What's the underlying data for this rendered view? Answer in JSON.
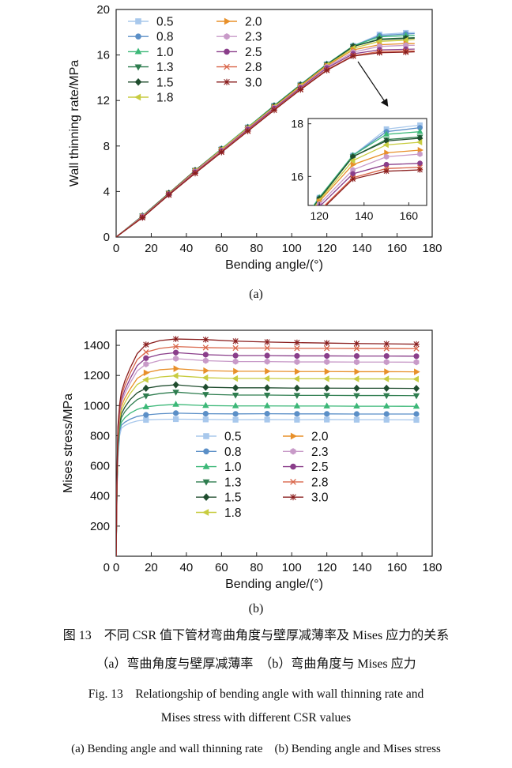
{
  "series_styles": [
    {
      "name": "0.5",
      "color": "#a8c8ec",
      "marker": "square"
    },
    {
      "name": "0.8",
      "color": "#5b8fc7",
      "marker": "circle"
    },
    {
      "name": "1.0",
      "color": "#3cb878",
      "marker": "triangle-up"
    },
    {
      "name": "1.3",
      "color": "#2e7d4f",
      "marker": "triangle-down"
    },
    {
      "name": "1.5",
      "color": "#1f4d2e",
      "marker": "diamond"
    },
    {
      "name": "1.8",
      "color": "#c8cc40",
      "marker": "triangle-left"
    },
    {
      "name": "2.0",
      "color": "#e8902a",
      "marker": "triangle-right"
    },
    {
      "name": "2.3",
      "color": "#c89ac8",
      "marker": "hexagon"
    },
    {
      "name": "2.5",
      "color": "#8a3e8a",
      "marker": "circle"
    },
    {
      "name": "2.8",
      "color": "#d9664a",
      "marker": "x"
    },
    {
      "name": "3.0",
      "color": "#8a1e1e",
      "marker": "star"
    }
  ],
  "chart_data": [
    {
      "type": "line",
      "panel": "(a)",
      "xlabel": "Bending angle/(°)",
      "ylabel": "Wall thinning rate/MPa",
      "xlim": [
        0,
        180
      ],
      "ylim": [
        0,
        20
      ],
      "xticks": [
        "0",
        "20",
        "40",
        "60",
        "80",
        "100",
        "120",
        "140",
        "160",
        "180"
      ],
      "yticks": [
        "0",
        "4",
        "8",
        "12",
        "16",
        "20"
      ],
      "legend": "top-left, two columns",
      "grid": false,
      "x": [
        0,
        15,
        30,
        45,
        60,
        75,
        90,
        105,
        120,
        135,
        150,
        165,
        170
      ],
      "series": [
        {
          "name": "0.5",
          "values": [
            0,
            1.85,
            3.85,
            5.85,
            7.75,
            9.65,
            11.55,
            13.4,
            15.2,
            16.8,
            17.8,
            17.95,
            17.98
          ]
        },
        {
          "name": "0.8",
          "values": [
            0,
            1.85,
            3.85,
            5.85,
            7.75,
            9.65,
            11.55,
            13.4,
            15.2,
            16.8,
            17.7,
            17.85,
            17.88
          ]
        },
        {
          "name": "1.0",
          "values": [
            0,
            1.85,
            3.85,
            5.85,
            7.75,
            9.65,
            11.55,
            13.4,
            15.2,
            16.8,
            17.6,
            17.7,
            17.72
          ]
        },
        {
          "name": "1.3",
          "values": [
            0,
            1.85,
            3.85,
            5.85,
            7.7,
            9.6,
            11.5,
            13.35,
            15.15,
            16.75,
            17.4,
            17.5,
            17.52
          ]
        },
        {
          "name": "1.5",
          "values": [
            0,
            1.85,
            3.85,
            5.85,
            7.7,
            9.6,
            11.5,
            13.35,
            15.15,
            16.75,
            17.35,
            17.45,
            17.48
          ]
        },
        {
          "name": "1.8",
          "values": [
            0,
            1.8,
            3.8,
            5.8,
            7.7,
            9.6,
            11.45,
            13.3,
            15.1,
            16.6,
            17.2,
            17.3,
            17.35
          ]
        },
        {
          "name": "2.0",
          "values": [
            0,
            1.8,
            3.8,
            5.8,
            7.65,
            9.55,
            11.4,
            13.25,
            15.05,
            16.45,
            16.9,
            17.0,
            17.0
          ]
        },
        {
          "name": "2.3",
          "values": [
            0,
            1.8,
            3.75,
            5.75,
            7.6,
            9.5,
            11.35,
            13.15,
            14.95,
            16.25,
            16.75,
            16.85,
            16.85
          ]
        },
        {
          "name": "2.5",
          "values": [
            0,
            1.75,
            3.75,
            5.7,
            7.55,
            9.45,
            11.3,
            13.1,
            14.85,
            16.1,
            16.45,
            16.5,
            16.52
          ]
        },
        {
          "name": "2.8",
          "values": [
            0,
            1.75,
            3.7,
            5.65,
            7.5,
            9.35,
            11.2,
            13.0,
            14.7,
            15.95,
            16.3,
            16.35,
            16.35
          ]
        },
        {
          "name": "3.0",
          "values": [
            0,
            1.7,
            3.7,
            5.6,
            7.45,
            9.3,
            11.15,
            12.95,
            14.65,
            15.9,
            16.2,
            16.25,
            16.28
          ]
        }
      ],
      "inset": {
        "xlim": [
          115,
          168
        ],
        "ylim": [
          14.9,
          18.2
        ],
        "xticks": [
          "120",
          "140",
          "160"
        ],
        "yticks": [
          "16",
          "18"
        ]
      }
    },
    {
      "type": "line",
      "panel": "(b)",
      "xlabel": "Bending angle/(°)",
      "ylabel": "Mises stress/MPa",
      "xlim": [
        0,
        180
      ],
      "ylim": [
        0,
        1500
      ],
      "xticks": [
        "0",
        "20",
        "40",
        "60",
        "80",
        "100",
        "120",
        "140",
        "160",
        "180"
      ],
      "yticks": [
        "200",
        "400",
        "600",
        "800",
        "1000",
        "1200",
        "1400"
      ],
      "legend": "center, two columns",
      "grid": false,
      "x": [
        0,
        0.5,
        1,
        2,
        3,
        5,
        8,
        12,
        17,
        25,
        34,
        51,
        68,
        86,
        103,
        120,
        137,
        154,
        171
      ],
      "series": [
        {
          "name": "0.5",
          "values": [
            0,
            420,
            650,
            800,
            850,
            868,
            885,
            898,
            905,
            908,
            910,
            908,
            906,
            907,
            906,
            907,
            906,
            906,
            905
          ]
        },
        {
          "name": "0.8",
          "values": [
            0,
            440,
            680,
            830,
            870,
            890,
            910,
            928,
            938,
            946,
            950,
            946,
            945,
            946,
            945,
            945,
            944,
            944,
            944
          ]
        },
        {
          "name": "1.0",
          "values": [
            0,
            450,
            700,
            850,
            890,
            920,
            950,
            975,
            992,
            1002,
            1008,
            1000,
            998,
            998,
            997,
            997,
            996,
            996,
            995
          ]
        },
        {
          "name": "1.3",
          "values": [
            0,
            460,
            720,
            870,
            920,
            960,
            1000,
            1040,
            1065,
            1080,
            1090,
            1075,
            1070,
            1070,
            1068,
            1068,
            1067,
            1067,
            1066
          ]
        },
        {
          "name": "1.5",
          "values": [
            0,
            470,
            740,
            890,
            945,
            990,
            1040,
            1085,
            1115,
            1130,
            1138,
            1122,
            1118,
            1118,
            1116,
            1116,
            1115,
            1115,
            1114
          ]
        },
        {
          "name": "1.8",
          "values": [
            0,
            480,
            760,
            910,
            970,
            1020,
            1080,
            1140,
            1172,
            1190,
            1198,
            1185,
            1180,
            1180,
            1178,
            1178,
            1177,
            1177,
            1176
          ]
        },
        {
          "name": "2.0",
          "values": [
            0,
            490,
            780,
            930,
            995,
            1050,
            1110,
            1180,
            1218,
            1238,
            1245,
            1232,
            1228,
            1228,
            1226,
            1226,
            1225,
            1225,
            1224
          ]
        },
        {
          "name": "2.3",
          "values": [
            0,
            500,
            800,
            950,
            1020,
            1080,
            1150,
            1230,
            1275,
            1300,
            1312,
            1298,
            1292,
            1292,
            1290,
            1290,
            1289,
            1289,
            1288
          ]
        },
        {
          "name": "2.5",
          "values": [
            0,
            510,
            820,
            970,
            1040,
            1105,
            1180,
            1265,
            1315,
            1340,
            1352,
            1338,
            1332,
            1332,
            1330,
            1330,
            1329,
            1329,
            1328
          ]
        },
        {
          "name": "2.8",
          "values": [
            0,
            520,
            840,
            990,
            1065,
            1135,
            1215,
            1305,
            1355,
            1380,
            1392,
            1385,
            1382,
            1382,
            1380,
            1380,
            1379,
            1379,
            1378
          ]
        },
        {
          "name": "3.0",
          "values": [
            0,
            530,
            860,
            1010,
            1090,
            1165,
            1250,
            1345,
            1405,
            1432,
            1442,
            1438,
            1428,
            1422,
            1418,
            1415,
            1412,
            1410,
            1408
          ]
        }
      ]
    }
  ],
  "captions": {
    "sub_a": "(a)",
    "sub_b": "(b)",
    "zh_1": "图 13　不同 CSR 值下管材弯曲角度与壁厚减薄率及 Mises 应力的关系",
    "zh_2": "（a）弯曲角度与壁厚减薄率　（b）弯曲角度与 Mises 应力",
    "en_1": "Fig. 13　Relationgship of bending angle with wall thinning rate and",
    "en_2": "Mises stress with different CSR values",
    "en_3": "(a) Bending angle and wall thinning rate　(b) Bending angle and Mises stress"
  }
}
